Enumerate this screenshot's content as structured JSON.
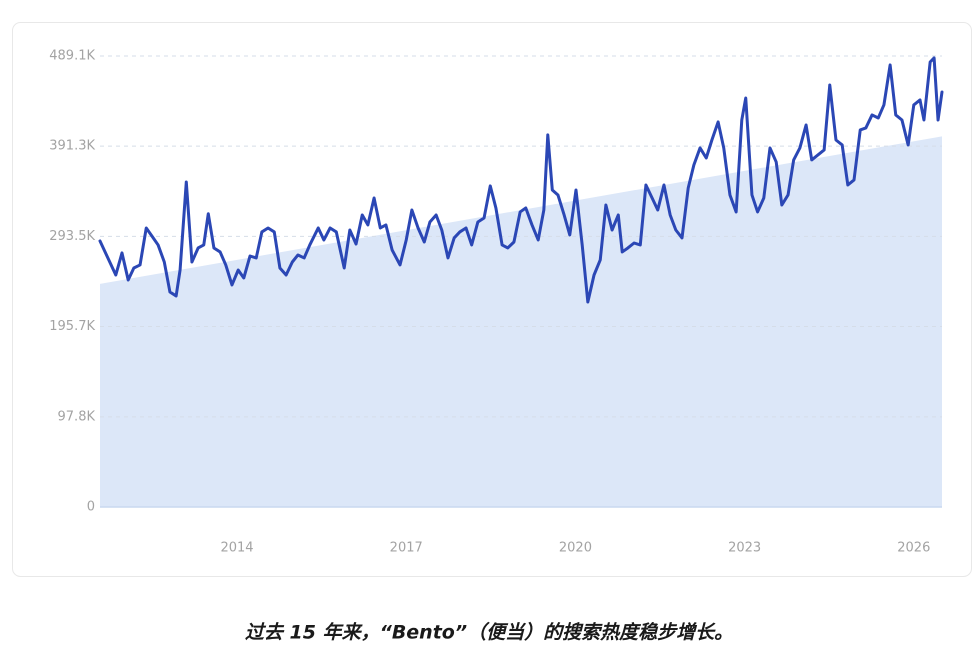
{
  "chart_data": {
    "type": "line",
    "caption": "过去 15 年来，“Bento”（便当）的搜索热度稳步增长。",
    "color": "#2b47b5",
    "xlim": [
      2011.57,
      2026.5
    ],
    "xticks": [
      2014,
      2017,
      2020,
      2023,
      2026
    ],
    "ylim": [
      0,
      489.1
    ],
    "yticks": [
      0,
      {
        "value": 97.8,
        "label": "97.8K"
      },
      {
        "value": 195.7,
        "label": "195.7K"
      },
      {
        "value": 293.5,
        "label": "293.5K"
      },
      {
        "value": 391.3,
        "label": "391.3K"
      },
      {
        "value": 489.1,
        "label": "489.1K"
      }
    ],
    "grid": true,
    "trend": {
      "x": [
        2011.57,
        2026.5
      ],
      "values": [
        242,
        402
      ],
      "color": "#dce7f8"
    },
    "x": [
      2011.57,
      2011.71,
      2011.85,
      2011.96,
      2012.07,
      2012.17,
      2012.28,
      2012.39,
      2012.49,
      2012.6,
      2012.71,
      2012.81,
      2012.92,
      2012.99,
      2013.1,
      2013.2,
      2013.31,
      2013.41,
      2013.49,
      2013.59,
      2013.7,
      2013.8,
      2013.91,
      2014.02,
      2014.12,
      2014.23,
      2014.34,
      2014.44,
      2014.55,
      2014.66,
      2014.76,
      2014.87,
      2014.98,
      2015.08,
      2015.19,
      2015.29,
      2015.44,
      2015.54,
      2015.65,
      2015.76,
      2015.9,
      2016.0,
      2016.11,
      2016.22,
      2016.32,
      2016.43,
      2016.54,
      2016.64,
      2016.75,
      2016.89,
      2017.0,
      2017.1,
      2017.21,
      2017.32,
      2017.42,
      2017.53,
      2017.63,
      2017.74,
      2017.85,
      2017.95,
      2018.06,
      2018.16,
      2018.27,
      2018.38,
      2018.49,
      2018.59,
      2018.7,
      2018.8,
      2018.91,
      2019.02,
      2019.12,
      2019.23,
      2019.34,
      2019.44,
      2019.51,
      2019.59,
      2019.69,
      2019.8,
      2019.9,
      2020.01,
      2020.12,
      2020.22,
      2020.33,
      2020.44,
      2020.54,
      2020.65,
      2020.76,
      2020.83,
      2020.93,
      2021.04,
      2021.15,
      2021.25,
      2021.36,
      2021.46,
      2021.57,
      2021.68,
      2021.78,
      2021.89,
      2022.0,
      2022.1,
      2022.21,
      2022.32,
      2022.42,
      2022.53,
      2022.63,
      2022.74,
      2022.85,
      2022.95,
      2023.02,
      2023.13,
      2023.23,
      2023.34,
      2023.45,
      2023.56,
      2023.66,
      2023.77,
      2023.87,
      2023.98,
      2024.09,
      2024.19,
      2024.3,
      2024.41,
      2024.51,
      2024.62,
      2024.73,
      2024.83,
      2024.94,
      2025.05,
      2025.15,
      2025.26,
      2025.37,
      2025.47,
      2025.58,
      2025.68,
      2025.79,
      2025.9,
      2026.0,
      2026.11,
      2026.18,
      2026.29,
      2026.36,
      2026.43,
      2026.5
    ],
    "values": [
      288.5,
      270,
      251.6,
      275.5,
      246.2,
      259.2,
      262.5,
      302.6,
      293.9,
      284.2,
      265.7,
      233.2,
      228.9,
      257.0,
      352.5,
      265.7,
      280.9,
      284.2,
      318.0,
      280.9,
      276.6,
      262.5,
      240.8,
      257.0,
      248.4,
      272.2,
      270.1,
      298.3,
      302.6,
      298.3,
      259.2,
      251.6,
      265.7,
      273.3,
      270.1,
      284.2,
      302.6,
      289.6,
      302.6,
      298.3,
      259.2,
      300.4,
      285.2,
      316.7,
      305.9,
      335.1,
      302.6,
      305.9,
      278.7,
      262.5,
      289.6,
      322.1,
      302.6,
      287.4,
      309.1,
      316.7,
      300.4,
      270.1,
      291.8,
      298.3,
      302.6,
      284.2,
      309.1,
      313.4,
      348.2,
      324.3,
      284.2,
      280.9,
      287.4,
      320.0,
      324.3,
      305.9,
      289.6,
      322.1,
      403.5,
      343.8,
      338.4,
      316.7,
      295.0,
      343.8,
      284.2,
      222.3,
      251.6,
      267.9,
      327.5,
      300.4,
      316.7,
      276.6,
      280.9,
      286.3,
      284.2,
      349.2,
      335.1,
      322.1,
      349.2,
      316.7,
      300.4,
      291.8,
      346.0,
      370.9,
      389.4,
      378.5,
      398.0,
      417.6,
      389.4,
      338.4,
      320.0,
      419.7,
      443.6,
      338.4,
      320.0,
      335.1,
      389.4,
      374.2,
      327.5,
      338.4,
      376.4,
      389.4,
      414.3,
      376.4,
      381.8,
      387.2,
      457.7,
      398.0,
      392.6,
      349.2,
      354.7,
      408.9,
      411.1,
      425.2,
      421.9,
      436.0,
      479.4,
      425.2,
      419.7,
      392.6,
      436.0,
      441.4,
      419.7,
      482.6,
      487.0,
      419.7,
      450.1
    ]
  }
}
